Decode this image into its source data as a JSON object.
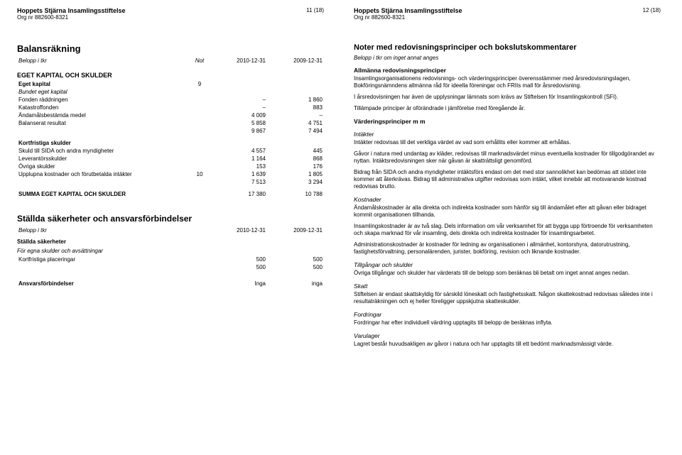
{
  "org": {
    "name": "Hoppets Stjärna Insamlingsstiftelse",
    "nr": "Org nr 882600-8321"
  },
  "left": {
    "pageNr": "11 (18)",
    "title": "Balansräkning",
    "belopp": "Belopp i tkr",
    "not": "Not",
    "y1": "2010-12-31",
    "y2": "2009-12-31",
    "s1": "EGET KAPITAL OCH SKULDER",
    "egetKapital": "Eget kapital",
    "egetKapitalNote": "9",
    "bundet": "Bundet eget kapital",
    "rows1": [
      {
        "l": "Fonden räddningen",
        "a": "–",
        "b": "1 860"
      },
      {
        "l": "Katastroffonden",
        "a": "–",
        "b": "883"
      },
      {
        "l": "Ändamålsbestämda medel",
        "a": "4 009",
        "b": "–"
      },
      {
        "l": "Balanserat resultat",
        "a": "5 858",
        "b": "4 751"
      }
    ],
    "sum1": {
      "a": "9 867",
      "b": "7 494"
    },
    "kortfristiga": "Kortfristiga skulder",
    "rows2": [
      {
        "l": "Skuld till SIDA och andra myndigheter",
        "n": "",
        "a": "4 557",
        "b": "445"
      },
      {
        "l": "Leverantörsskulder",
        "n": "",
        "a": "1 164",
        "b": "868"
      },
      {
        "l": "Övriga skulder",
        "n": "",
        "a": "153",
        "b": "176"
      },
      {
        "l": "Upplupna kostnader och förutbetalda intäkter",
        "n": "10",
        "a": "1 639",
        "b": "1 805"
      }
    ],
    "sum2": {
      "a": "7 513",
      "b": "3 294"
    },
    "summa": {
      "l": "SUMMA EGET KAPITAL OCH SKULDER",
      "a": "17 380",
      "b": "10 788"
    },
    "stallda": {
      "title": "Ställda säkerheter och ansvarsförbindelser",
      "belopp": "Belopp i tkr",
      "y1": "2010-12-31",
      "y2": "2009-12-31",
      "sh": "Ställda säkerheter",
      "egna": "För egna skulder och avsättningar",
      "row": {
        "l": "Kortfristiga placeringar",
        "a": "500",
        "b": "500"
      },
      "sum": {
        "a": "500",
        "b": "500"
      },
      "ansvar": {
        "l": "Ansvarsförbindelser",
        "a": "Inga",
        "b": "inga"
      }
    }
  },
  "right": {
    "pageNr": "12 (18)",
    "title": "Noter med redovisningsprinciper och bokslutskommentarer",
    "sub": "Belopp i tkr om inget annat anges",
    "sections": [
      {
        "h": "Allmänna redovisningsprinciper",
        "b": true,
        "p": [
          "Insamlingsorganisationens redovisnings- och värderingsprinciper överensstämmer med årsredovisningslagen, Bokföringsnämndens allmänna råd för ideella föreningar och FRIIs mall för årsredovisning.",
          "I årsredovisningen har även de upplysningar lämnats som krävs av Stiftelsen för Insamlings­kontroll (SFI).",
          "Tillämpade principer är oförändrade i jämförelse med föregående år."
        ]
      },
      {
        "h": "Värderingsprinciper m m",
        "b": true,
        "p": []
      },
      {
        "h": "Intäkter",
        "b": false,
        "p": [
          "Intäkter redovisas till det verkliga värdet av vad som erhållits eller kommer att erhållas.",
          "Gåvor i natura med undantag av kläder, redovisas till marknadsvärdet minus eventuella kostnader för tillgodgörandet av nyttan. Intäktsredovisningen sker när gåvan är skatträttsligt genomförd.",
          "Bidrag från SIDA och andra myndigheter intäktsförs endast om det med stor sannolikhet kan bedömas att stödet inte kommer att återkrävas. Bidrag till administrativa utgifter redovisas som intäkt, vilket innebär att motsvarande kostnad redovisas brutto."
        ]
      },
      {
        "h": "Kostnader",
        "b": false,
        "p": [
          "Ändamålskostnader är alla direkta och indirekta kostnader som hänför sig till ändamålet efter att gåvan eller bidraget kommit organisationen tillhanda.",
          "Insamlingskostnader är av två slag. Dels information om vår verksamhet för att bygga upp förtroende för verksamheten och skapa marknad för vår insamling, dels direkta och indirekta kostnader för insamlingsarbetet.",
          "Administrationskostnader är kostnader för ledning av organisationen i allmänhet, kontorshyra, datorutrustning, fastighetsförvaltning, personalärenden, jurister, bokföring, revision och liknande kostnader."
        ]
      },
      {
        "h": "Tillgångar och skulder",
        "b": false,
        "p": [
          "Övriga tillgångar och skulder har värderats till de belopp som beräknas bli betalt om inget annat anges nedan."
        ]
      },
      {
        "h": "Skatt",
        "b": false,
        "p": [
          "Stiftelsen är endast skattskyldig för särskild löneskatt och fastighetsskatt. Någon skatte­kostnad redovisas således inte i resultaträkningen och ej heller föreligger uppskjutna skatte­skulder."
        ]
      },
      {
        "h": "Fordringar",
        "b": false,
        "p": [
          "Fordringar har efter individuell värdring upptagits till belopp de beräknas inflyta."
        ]
      },
      {
        "h": "Varulager",
        "b": false,
        "p": [
          "Lagret består huvudsakligen av gåvor i natura och har upptagits till ett bedömt marknadsmässigt värde."
        ]
      }
    ]
  }
}
